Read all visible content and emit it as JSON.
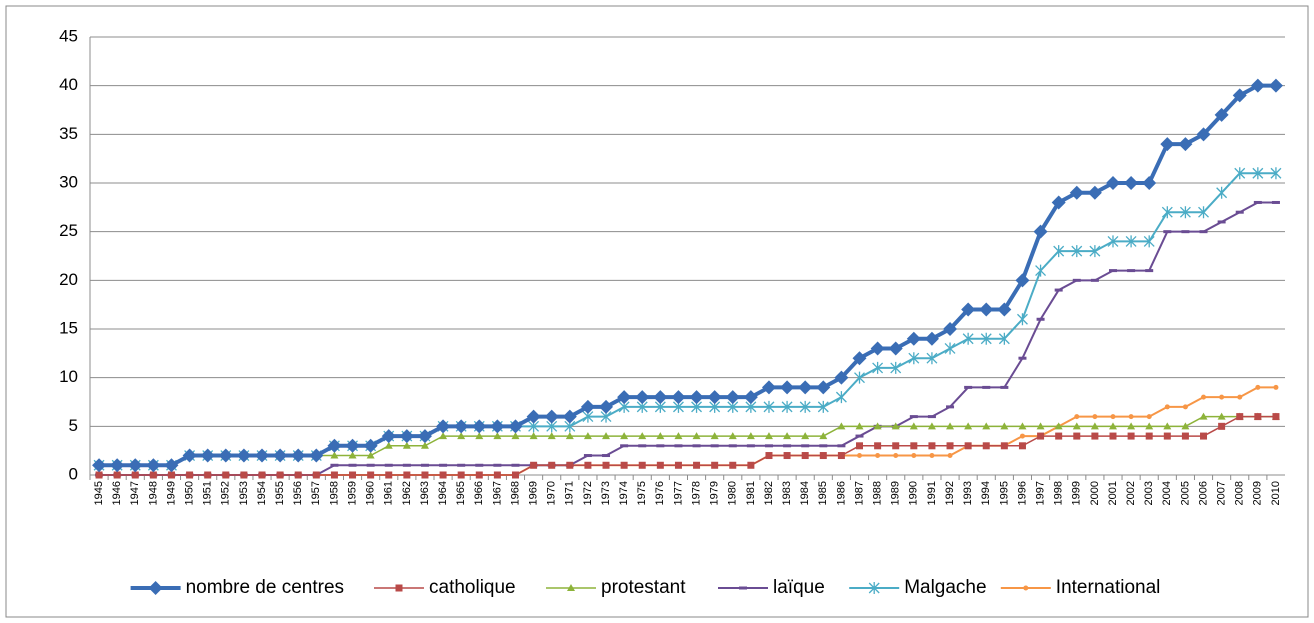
{
  "chart_data": {
    "type": "line",
    "categories": [
      "1945",
      "1946",
      "1947",
      "1948",
      "1949",
      "1950",
      "1951",
      "1952",
      "1953",
      "1954",
      "1955",
      "1956",
      "1957",
      "1958",
      "1959",
      "1960",
      "1961",
      "1962",
      "1963",
      "1964",
      "1965",
      "1966",
      "1967",
      "1968",
      "1969",
      "1970",
      "1971",
      "1972",
      "1973",
      "1974",
      "1975",
      "1976",
      "1977",
      "1978",
      "1979",
      "1980",
      "1981",
      "1982",
      "1983",
      "1984",
      "1985",
      "1986",
      "1987",
      "1988",
      "1989",
      "1990",
      "1991",
      "1992",
      "1993",
      "1994",
      "1995",
      "1996",
      "1997",
      "1998",
      "1999",
      "2000",
      "2001",
      "2002",
      "2003",
      "2004",
      "2005",
      "2006",
      "2007",
      "2008",
      "2009",
      "2010"
    ],
    "series": [
      {
        "name": "nombre de centres",
        "color": "#3a6db5",
        "marker": "diamond",
        "width": 4,
        "values": [
          1,
          1,
          1,
          1,
          1,
          2,
          2,
          2,
          2,
          2,
          2,
          2,
          2,
          3,
          3,
          3,
          4,
          4,
          4,
          5,
          5,
          5,
          5,
          5,
          6,
          6,
          6,
          7,
          7,
          8,
          8,
          8,
          8,
          8,
          8,
          8,
          8,
          9,
          9,
          9,
          9,
          10,
          12,
          13,
          13,
          14,
          14,
          15,
          17,
          17,
          17,
          20,
          25,
          28,
          29,
          29,
          30,
          30,
          30,
          34,
          34,
          35,
          37,
          39,
          40,
          40
        ]
      },
      {
        "name": "catholique",
        "color": "#b94a48",
        "marker": "square",
        "width": 1.5,
        "values": [
          0,
          0,
          0,
          0,
          0,
          0,
          0,
          0,
          0,
          0,
          0,
          0,
          0,
          0,
          0,
          0,
          0,
          0,
          0,
          0,
          0,
          0,
          0,
          0,
          1,
          1,
          1,
          1,
          1,
          1,
          1,
          1,
          1,
          1,
          1,
          1,
          1,
          2,
          2,
          2,
          2,
          2,
          3,
          3,
          3,
          3,
          3,
          3,
          3,
          3,
          3,
          3,
          4,
          4,
          4,
          4,
          4,
          4,
          4,
          4,
          4,
          4,
          5,
          6,
          6,
          6
        ]
      },
      {
        "name": "protestant",
        "color": "#8db33a",
        "marker": "triangle",
        "width": 1.5,
        "values": [
          1,
          1,
          1,
          1,
          1,
          2,
          2,
          2,
          2,
          2,
          2,
          2,
          2,
          2,
          2,
          2,
          3,
          3,
          3,
          4,
          4,
          4,
          4,
          4,
          4,
          4,
          4,
          4,
          4,
          4,
          4,
          4,
          4,
          4,
          4,
          4,
          4,
          4,
          4,
          4,
          4,
          5,
          5,
          5,
          5,
          5,
          5,
          5,
          5,
          5,
          5,
          5,
          5,
          5,
          5,
          5,
          5,
          5,
          5,
          5,
          5,
          6,
          6,
          6,
          6,
          6
        ]
      },
      {
        "name": "laïque",
        "color": "#6a4c93",
        "marker": "dash",
        "width": 2,
        "values": [
          0,
          0,
          0,
          0,
          0,
          0,
          0,
          0,
          0,
          0,
          0,
          0,
          0,
          1,
          1,
          1,
          1,
          1,
          1,
          1,
          1,
          1,
          1,
          1,
          1,
          1,
          1,
          2,
          2,
          3,
          3,
          3,
          3,
          3,
          3,
          3,
          3,
          3,
          3,
          3,
          3,
          3,
          4,
          5,
          5,
          6,
          6,
          7,
          9,
          9,
          9,
          12,
          16,
          19,
          20,
          20,
          21,
          21,
          21,
          25,
          25,
          25,
          26,
          27,
          28,
          28
        ]
      },
      {
        "name": "Malgache",
        "color": "#4bacc6",
        "marker": "asterisk",
        "width": 2,
        "values": [
          1,
          1,
          1,
          1,
          1,
          2,
          2,
          2,
          2,
          2,
          2,
          2,
          2,
          3,
          3,
          3,
          4,
          4,
          4,
          5,
          5,
          5,
          5,
          5,
          5,
          5,
          5,
          6,
          6,
          7,
          7,
          7,
          7,
          7,
          7,
          7,
          7,
          7,
          7,
          7,
          7,
          8,
          10,
          11,
          11,
          12,
          12,
          13,
          14,
          14,
          14,
          16,
          21,
          23,
          23,
          23,
          24,
          24,
          24,
          27,
          27,
          27,
          29,
          31,
          31,
          31
        ]
      },
      {
        "name": "International",
        "color": "#f79646",
        "marker": "circle",
        "width": 2,
        "values": [
          0,
          0,
          0,
          0,
          0,
          0,
          0,
          0,
          0,
          0,
          0,
          0,
          0,
          0,
          0,
          0,
          0,
          0,
          0,
          0,
          0,
          0,
          0,
          0,
          1,
          1,
          1,
          1,
          1,
          1,
          1,
          1,
          1,
          1,
          1,
          1,
          1,
          2,
          2,
          2,
          2,
          2,
          2,
          2,
          2,
          2,
          2,
          2,
          3,
          3,
          3,
          4,
          4,
          5,
          6,
          6,
          6,
          6,
          6,
          7,
          7,
          8,
          8,
          8,
          9,
          9
        ]
      }
    ],
    "ylim": [
      0,
      45
    ],
    "yticks": [
      0,
      5,
      10,
      15,
      20,
      25,
      30,
      35,
      40,
      45
    ],
    "grid": true,
    "legend": "bottom"
  }
}
